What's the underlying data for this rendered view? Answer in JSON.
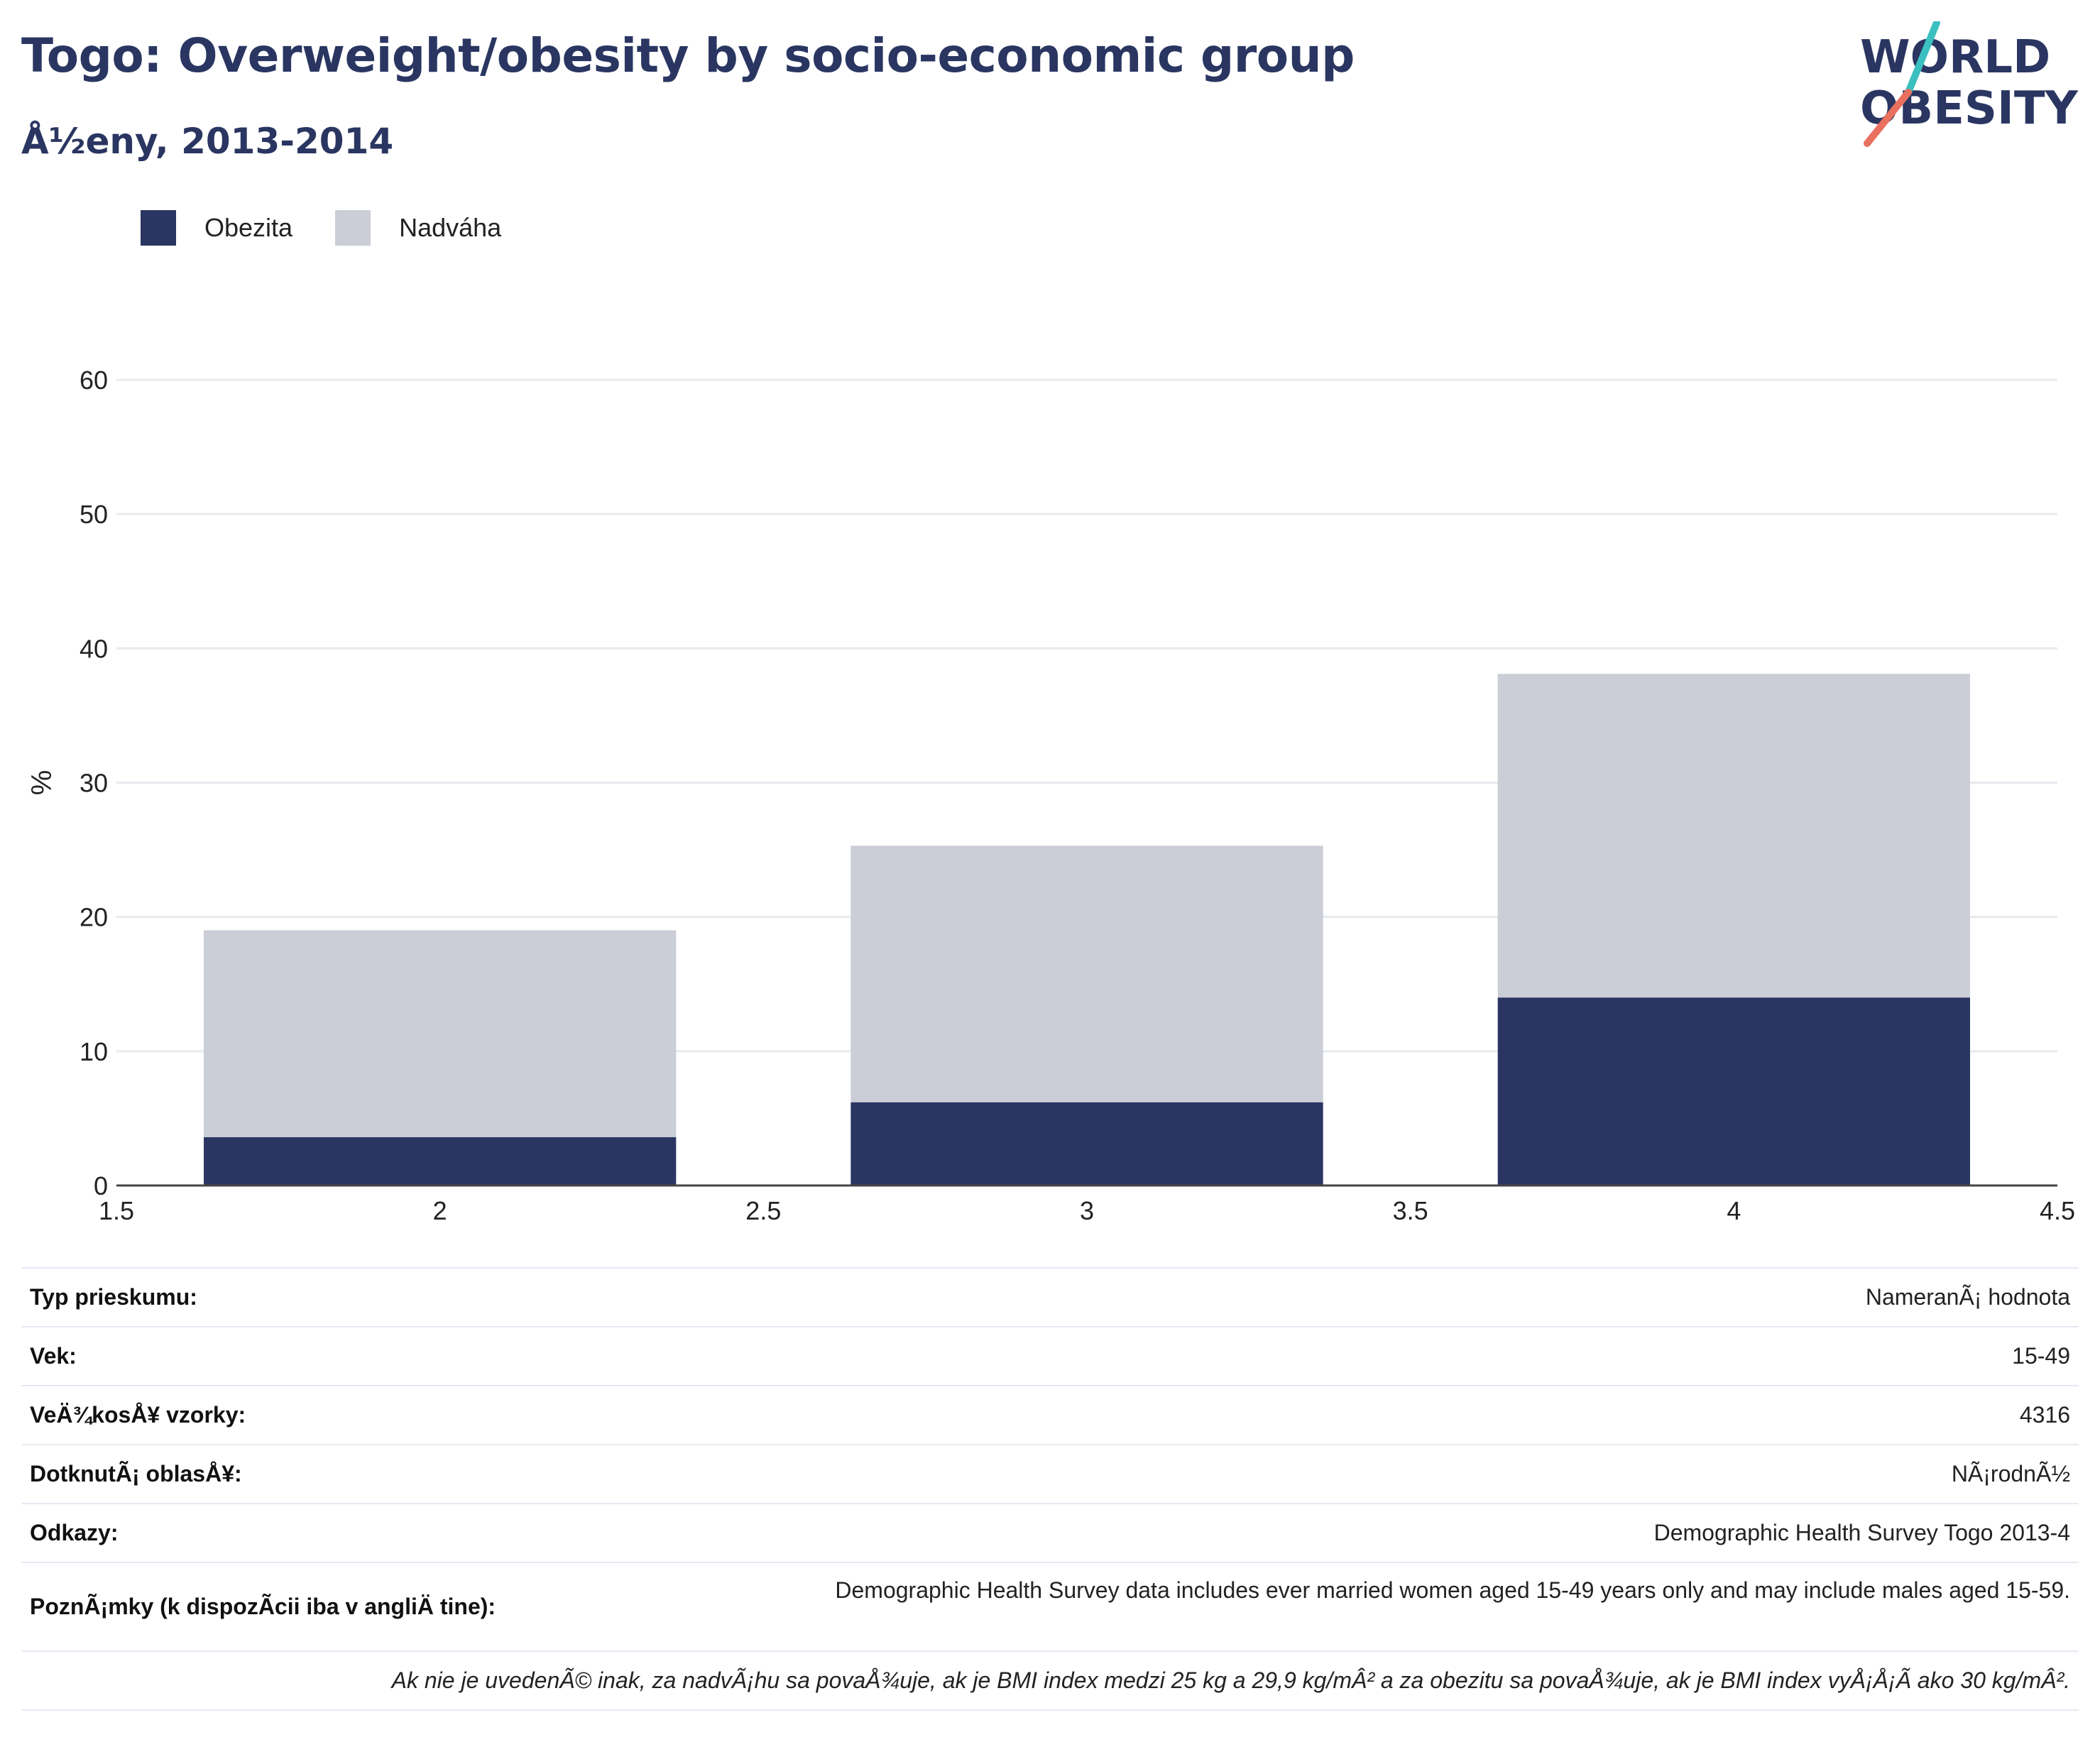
{
  "header": {
    "title": "Togo: Overweight/obesity by socio-economic group",
    "subtitle": "Å½eny, 2013-2014"
  },
  "logo": {
    "line1": "WORLD",
    "line2": "OBESITY",
    "colors": {
      "navy": "#2a3661",
      "teal": "#3bbfc0",
      "coral": "#e9705f"
    }
  },
  "legend": [
    {
      "label": "Obezita",
      "color": "#2a3661"
    },
    {
      "label": "Nadváha",
      "color": "#cbcdd7"
    }
  ],
  "chart_data": {
    "type": "bar",
    "stacked": true,
    "x": [
      2,
      3,
      4
    ],
    "series": [
      {
        "name": "Obezita",
        "color": "#2a3661",
        "values": [
          3.6,
          6.2,
          14.0
        ]
      },
      {
        "name": "Nadváha",
        "color": "#cbcdd7",
        "values": [
          15.4,
          19.1,
          24.1
        ]
      }
    ],
    "totals": [
      19.0,
      25.3,
      38.1
    ],
    "ylabel": "%",
    "xlim": [
      1.5,
      4.5
    ],
    "ylim": [
      0,
      60
    ],
    "xticks": [
      "1.5",
      "2",
      "2.5",
      "3",
      "3.5",
      "4",
      "4.5"
    ],
    "yticks": [
      "0",
      "10",
      "20",
      "30",
      "40",
      "50",
      "60"
    ],
    "grid": true,
    "legend_position": "top-left"
  },
  "meta": [
    {
      "key": "Typ prieskumu:",
      "value": "NameranÃ¡ hodnota"
    },
    {
      "key": "Vek:",
      "value": "15-49"
    },
    {
      "key": "VeÄ¾kosÅ¥ vzorky:",
      "value": "4316"
    },
    {
      "key": "DotknutÃ¡ oblasÅ¥:",
      "value": "NÃ¡rodnÃ½"
    },
    {
      "key": "Odkazy:",
      "value": "Demographic Health Survey Togo 2013-4"
    },
    {
      "key": "PoznÃ¡mky (k dispozÃcii iba v angliÄ tine):",
      "value": "Demographic Health Survey data includes ever married women aged 15-49 years only and may include males aged 15-59."
    }
  ],
  "footnote": "Ak nie je uvedenÃ© inak, za nadvÃ¡hu sa povaÅ¾uje, ak je BMI index medzi 25 kg a 29,9 kg/mÂ² a za obezitu sa povaÅ¾uje, ak je BMI index vyÅ¡Å¡Ã ako 30 kg/mÂ²."
}
